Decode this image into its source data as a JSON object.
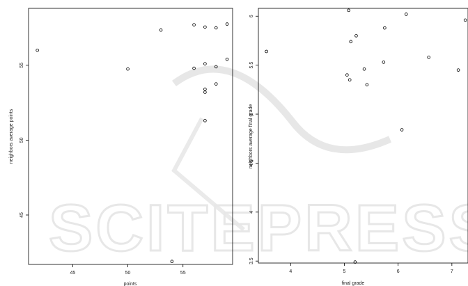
{
  "chart_data": [
    {
      "type": "scatter",
      "xlabel": "points",
      "ylabel": "neighbors average points",
      "xlim": [
        41,
        59.5
      ],
      "ylim": [
        41.7,
        58.8
      ],
      "xticks": [
        45,
        50,
        55
      ],
      "yticks": [
        45,
        50,
        55
      ],
      "points": [
        {
          "x": 41.8,
          "y": 56.0
        },
        {
          "x": 50.0,
          "y": 54.75
        },
        {
          "x": 53.0,
          "y": 57.35
        },
        {
          "x": 54.0,
          "y": 41.9
        },
        {
          "x": 56.0,
          "y": 57.7
        },
        {
          "x": 56.0,
          "y": 54.8
        },
        {
          "x": 57.0,
          "y": 57.55
        },
        {
          "x": 57.0,
          "y": 55.1
        },
        {
          "x": 57.0,
          "y": 53.4
        },
        {
          "x": 57.0,
          "y": 53.2
        },
        {
          "x": 57.0,
          "y": 51.3
        },
        {
          "x": 58.0,
          "y": 57.5
        },
        {
          "x": 58.0,
          "y": 54.9
        },
        {
          "x": 58.0,
          "y": 53.75
        },
        {
          "x": 59.0,
          "y": 57.75
        },
        {
          "x": 59.0,
          "y": 55.4
        }
      ]
    },
    {
      "type": "scatter",
      "xlabel": "final grade",
      "ylabel": "neighbors average final grade",
      "xlim": [
        3.4,
        7.3
      ],
      "ylim": [
        3.48,
        6.08
      ],
      "xticks": [
        4,
        5,
        6,
        7
      ],
      "yticks": [
        3.5,
        4.0,
        4.5,
        5.0,
        5.5,
        6.0
      ],
      "points": [
        {
          "x": 3.55,
          "y": 5.64
        },
        {
          "x": 5.05,
          "y": 5.4
        },
        {
          "x": 5.08,
          "y": 6.06
        },
        {
          "x": 5.1,
          "y": 5.35
        },
        {
          "x": 5.12,
          "y": 5.74
        },
        {
          "x": 5.2,
          "y": 3.49
        },
        {
          "x": 5.22,
          "y": 5.8
        },
        {
          "x": 5.37,
          "y": 5.46
        },
        {
          "x": 5.42,
          "y": 5.3
        },
        {
          "x": 5.73,
          "y": 5.53
        },
        {
          "x": 5.75,
          "y": 5.88
        },
        {
          "x": 6.07,
          "y": 4.84
        },
        {
          "x": 6.15,
          "y": 6.02
        },
        {
          "x": 6.57,
          "y": 5.58
        },
        {
          "x": 7.12,
          "y": 5.45
        },
        {
          "x": 7.25,
          "y": 5.96
        }
      ]
    }
  ],
  "watermark": {
    "text": "SCITEPRESS",
    "color": "#d9d9d9"
  }
}
